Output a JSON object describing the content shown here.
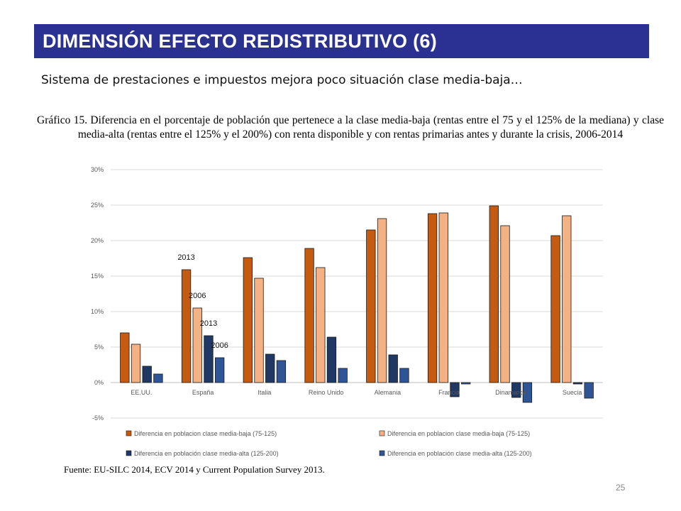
{
  "slide": {
    "title": "DIMENSIÓN EFECTO REDISTRIBUTIVO (6)",
    "subtitle": "Sistema de prestaciones e impuestos mejora poco situación clase media-baja…",
    "caption": "Gráfico 15. Diferencia en el porcentaje de población que pertenece a la clase media-baja (rentas entre el 75 y el 125% de la mediana) y clase media-alta (rentas entre el 125% y el 200%) con renta disponible y con rentas primarias antes y durante la crisis, 2006-2014",
    "source": "Fuente: EU-SILC 2014, ECV 2014 y Current Population Survey 2013.",
    "page_number": "25"
  },
  "chart_data": {
    "type": "bar",
    "categories": [
      "EE.UU.",
      "España",
      "Italia",
      "Reino Unido",
      "Alemania",
      "Francia",
      "Dinamarca",
      "Suecia"
    ],
    "ylim": [
      -5,
      30
    ],
    "yticks": [
      -5,
      0,
      5,
      10,
      15,
      20,
      25,
      30
    ],
    "ytick_labels": [
      "-5%",
      "0%",
      "5%",
      "10%",
      "15%",
      "20%",
      "25%",
      "30%"
    ],
    "grid": true,
    "legend_position": "bottom",
    "series": [
      {
        "name": "Diferencia en poblacion clase media-baja (75-125)",
        "color": "#c55a11",
        "values": [
          7.0,
          15.9,
          17.6,
          18.9,
          21.5,
          23.8,
          24.9,
          20.7
        ]
      },
      {
        "name": "Diferencia en poblacion clase media-baja (75-125)",
        "color": "#f4b183",
        "values": [
          5.4,
          10.5,
          14.7,
          16.2,
          23.1,
          23.9,
          22.1,
          23.5
        ]
      },
      {
        "name": "Diferencia en población clase media-alta (125-200)",
        "color": "#203864",
        "values": [
          2.3,
          6.6,
          4.0,
          6.4,
          3.9,
          -2.0,
          -2.1,
          -0.2
        ]
      },
      {
        "name": "Diferencia en población clase media-alta (125-200)",
        "color": "#2f5597",
        "values": [
          1.2,
          3.5,
          3.1,
          2.0,
          2.0,
          -0.2,
          -2.8,
          -2.2
        ]
      }
    ],
    "annotations": [
      {
        "text": "2013",
        "category": "España",
        "series": 0
      },
      {
        "text": "2006",
        "category": "España",
        "series": 1
      },
      {
        "text": "2013",
        "category": "España",
        "series": 2
      },
      {
        "text": "2006",
        "category": "España",
        "series": 3
      }
    ]
  }
}
